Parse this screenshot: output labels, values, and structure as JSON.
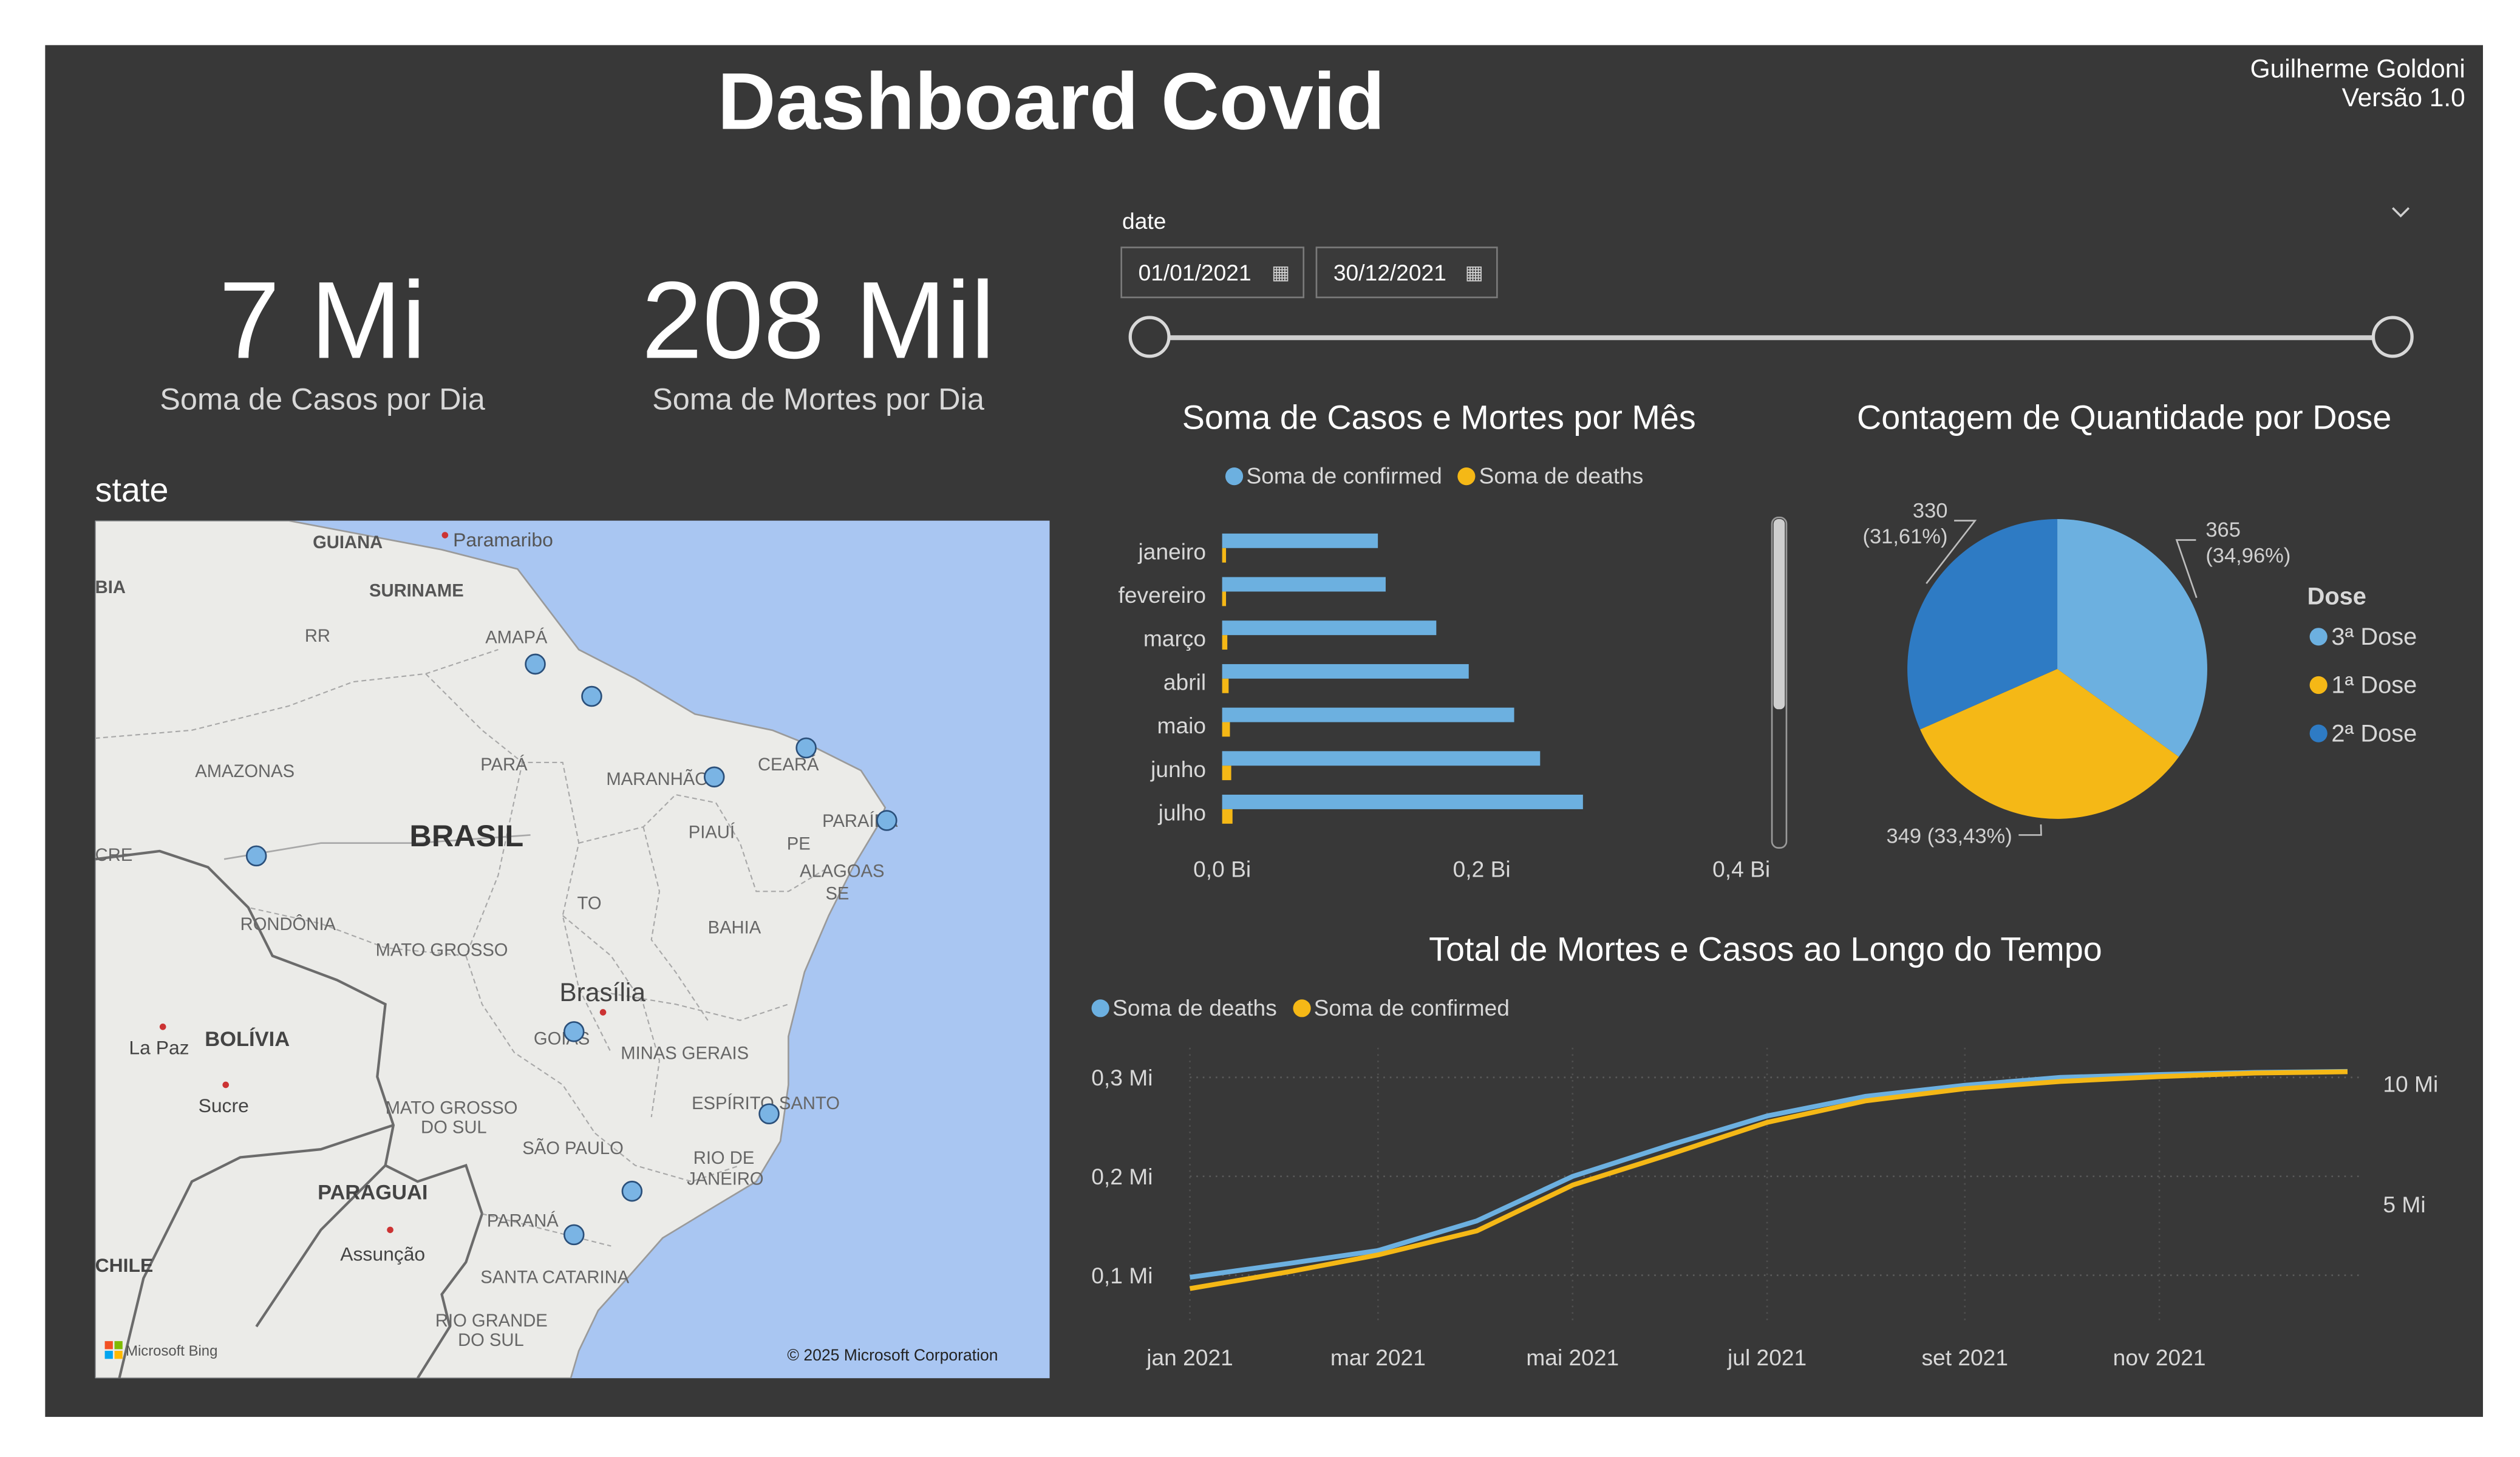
{
  "header": {
    "title": "Dashboard Covid",
    "author": "Guilherme Goldoni",
    "version": "Versão 1.0"
  },
  "kpis": [
    {
      "value": "7 Mi",
      "label": "Soma de Casos por Dia"
    },
    {
      "value": "208 Mil",
      "label": "Soma de Mortes por Dia"
    }
  ],
  "map": {
    "title": "state",
    "labels": {
      "guiana": "GUIANA",
      "paramaribo": "Paramaribo",
      "suriname": "SURINAME",
      "bia": "BIA",
      "rr": "RR",
      "amapa": "AMAPÁ",
      "amazonas": "AMAZONAS",
      "para": "PARÁ",
      "maranhao": "MARANHÃO",
      "ceara": "CEARÁ",
      "brasil": "BRASIL",
      "piaui": "PIAUÍ",
      "pe": "PE",
      "paraiba": "PARAÍBA",
      "alagoas": "ALAGOAS",
      "se": "SE",
      "cre": "CRE",
      "rondonia": "RONDÔNIA",
      "to": "TO",
      "bahia": "BAHIA",
      "matogrosso": "MATO GROSSO",
      "brasilia": "Brasília",
      "goias": "GOIÁS",
      "minas": "MINAS GERAIS",
      "lapaz": "La Paz",
      "bolivia": "BOLÍVIA",
      "sucre": "Sucre",
      "ms1": "MATO GROSSO",
      "ms2": "DO SUL",
      "espirito": "ESPÍRITO SANTO",
      "saopaulo": "SÃO PAULO",
      "rio1": "RIO DE",
      "rio2": "JANEIRO",
      "paraguai": "PARAGUAI",
      "parana": "PARANÁ",
      "assuncao": "Assunção",
      "chile": "CHILE",
      "santacatarina": "SANTA CATARINA",
      "rgs1": "RIO GRANDE",
      "rgs2": "DO SUL"
    },
    "bing": "Microsoft Bing",
    "copyright": "© 2025 Microsoft Corporation"
  },
  "date_filter": {
    "label": "date",
    "start": "01/01/2021",
    "end": "30/12/2021"
  },
  "colors": {
    "blue": "#6cb0e0",
    "yellow": "#f5b816",
    "darkblue": "#2e7bc4",
    "panel": "#383838"
  },
  "chart_data": [
    {
      "type": "bar",
      "title": "Soma de Casos e Mortes por Mês",
      "categories": [
        "janeiro",
        "fevereiro",
        "março",
        "abril",
        "maio",
        "junho",
        "julho"
      ],
      "series": [
        {
          "name": "Soma de confirmed",
          "values": [
            0.12,
            0.126,
            0.165,
            0.19,
            0.225,
            0.245,
            0.278
          ]
        },
        {
          "name": "Soma de deaths",
          "values": [
            0.003,
            0.003,
            0.004,
            0.005,
            0.006,
            0.007,
            0.008
          ]
        }
      ],
      "xticks": [
        "0,0 Bi",
        "0,2 Bi",
        "0,4 Bi"
      ],
      "xlim": [
        0,
        0.4
      ],
      "units": "Bi",
      "legend_position": "top"
    },
    {
      "type": "pie",
      "title": "Contagem de Quantidade por Dose",
      "legend_title": "Dose",
      "slices": [
        {
          "name": "3ª Dose",
          "value": 365,
          "label": "365",
          "pct": "(34,96%)"
        },
        {
          "name": "1ª Dose",
          "value": 349,
          "label": "349 (33,43%)",
          "pct": ""
        },
        {
          "name": "2ª Dose",
          "value": 330,
          "label": "330",
          "pct": "(31,61%)"
        }
      ],
      "legend_position": "right"
    },
    {
      "type": "line",
      "title": "Total de Mortes e Casos ao Longo do Tempo",
      "x": [
        "2021-01-01",
        "2021-02-01",
        "2021-03-01",
        "2021-04-01",
        "2021-05-01",
        "2021-06-01",
        "2021-07-01",
        "2021-08-01",
        "2021-09-01",
        "2021-10-01",
        "2021-11-01",
        "2021-12-01",
        "2021-12-30"
      ],
      "xticks": [
        "jan 2021",
        "mar 2021",
        "mai 2021",
        "jul 2021",
        "set 2021",
        "nov 2021"
      ],
      "series": [
        {
          "name": "Soma de deaths",
          "axis": "left",
          "values": [
            0.098,
            0.112,
            0.125,
            0.155,
            0.2,
            0.232,
            0.261,
            0.281,
            0.292,
            0.3,
            0.303,
            0.305,
            0.306
          ]
        },
        {
          "name": "Soma de confirmed",
          "axis": "right",
          "values": [
            1.5,
            2.2,
            2.9,
            3.9,
            5.8,
            7.1,
            8.4,
            9.3,
            9.8,
            10.1,
            10.3,
            10.45,
            10.5
          ]
        }
      ],
      "yticks_left": [
        "0,1 Mi",
        "0,2 Mi",
        "0,3 Mi"
      ],
      "yticks_right": [
        "5 Mi",
        "10 Mi"
      ],
      "ylim_left": [
        0.066,
        0.33
      ],
      "ylim_right": [
        0.66,
        11.5
      ],
      "legend_position": "top-left"
    }
  ]
}
